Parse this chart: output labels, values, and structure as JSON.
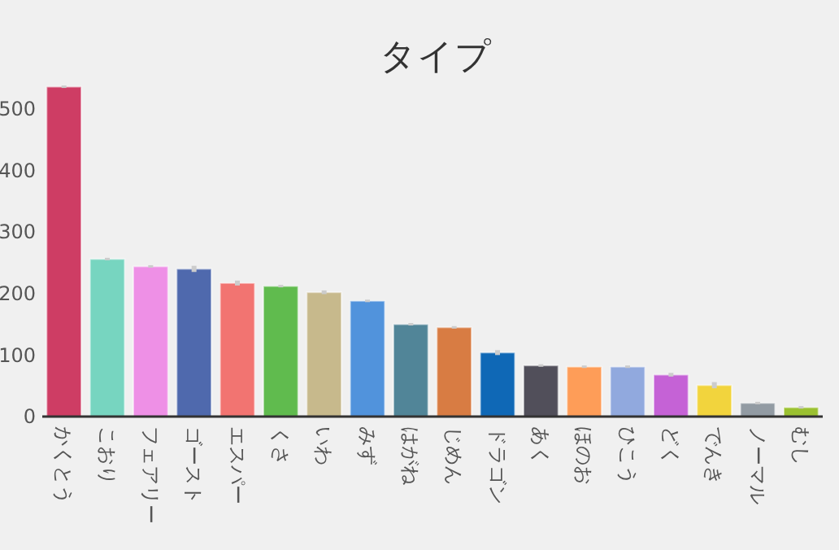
{
  "chart_data": {
    "type": "bar",
    "title": "タイプ",
    "categories": [
      "かくとう",
      "こおり",
      "フェアリー",
      "ゴースト",
      "エスパー",
      "くさ",
      "いわ",
      "みず",
      "はがね",
      "じめん",
      "ドラゴン",
      "あく",
      "ほのお",
      "ひこう",
      "どく",
      "でんき",
      "ノーマル",
      "むし"
    ],
    "values": [
      536,
      256,
      244,
      240,
      217,
      212,
      202,
      188,
      150,
      145,
      104,
      83,
      81,
      81,
      68,
      51,
      22,
      15
    ],
    "errors": [
      2,
      2,
      2,
      5,
      4,
      2,
      3,
      2,
      2,
      2,
      4,
      2,
      2,
      2,
      3,
      5,
      2,
      2
    ],
    "colors": [
      "#ce3d64",
      "#77d5c0",
      "#ee90e6",
      "#4f69ad",
      "#f27471",
      "#60bb4e",
      "#c7b98c",
      "#5193dc",
      "#518598",
      "#d87c43",
      "#0f68b6",
      "#514f5a",
      "#fe9d58",
      "#91a9de",
      "#c562d6",
      "#f2d43d",
      "#929ba3",
      "#9bc131"
    ],
    "ylim": [
      0,
      550
    ],
    "yticks": [
      0,
      100,
      200,
      300,
      400,
      500
    ],
    "grid": false
  }
}
